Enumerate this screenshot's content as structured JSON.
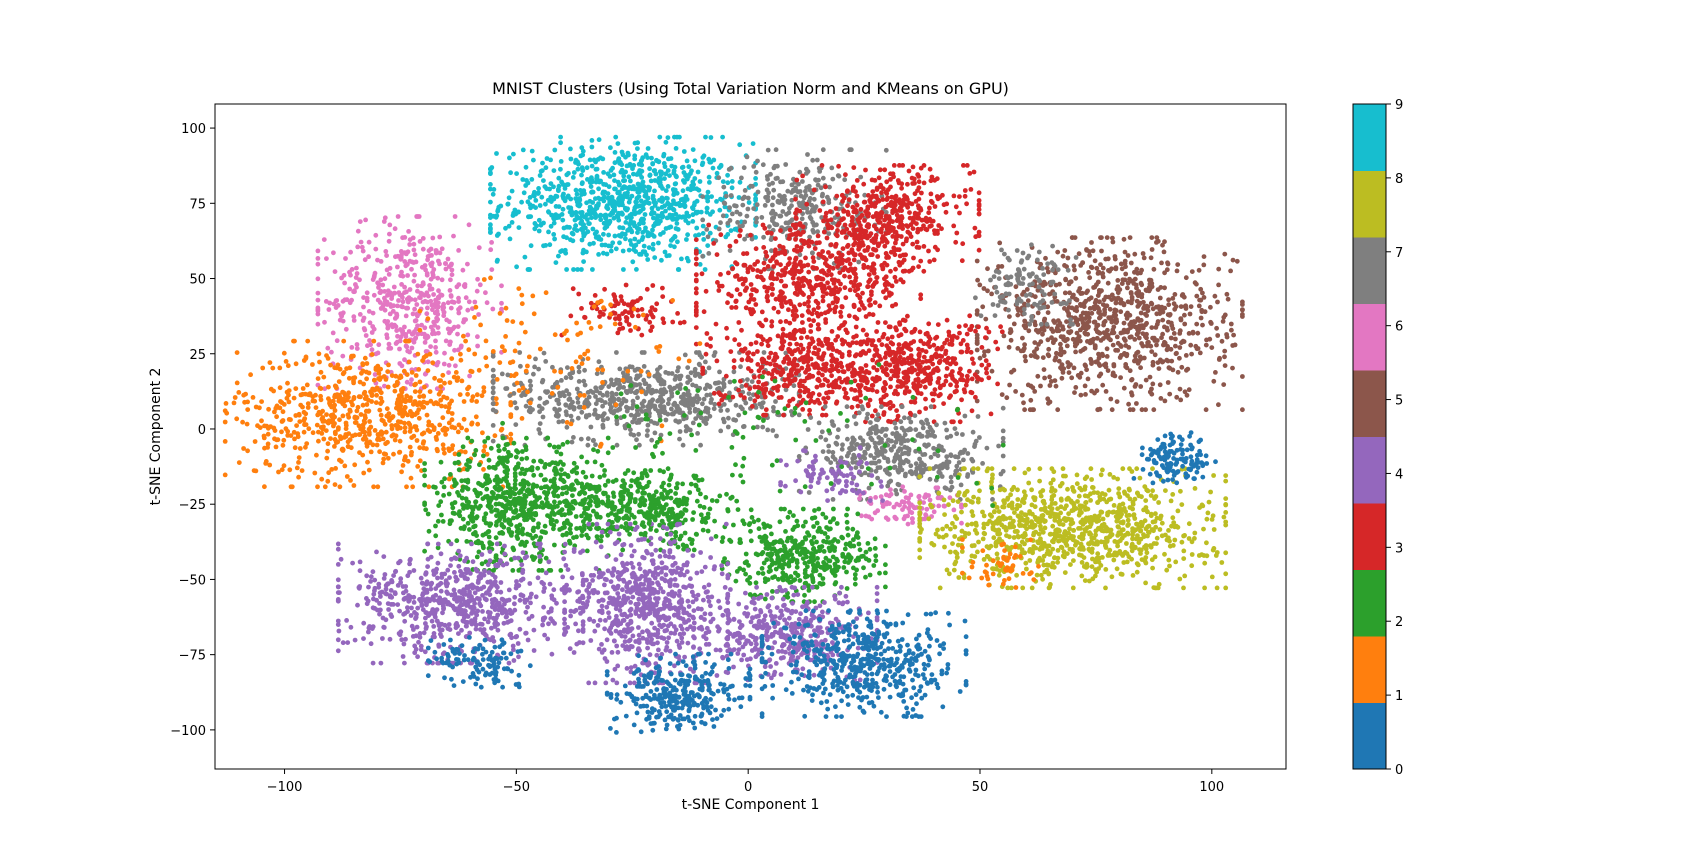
{
  "chart_data": {
    "type": "scatter",
    "title": "MNIST Clusters (Using Total Variation Norm and KMeans on GPU)",
    "xlabel": "t-SNE Component 1",
    "ylabel": "t-SNE Component 2",
    "xlim": [
      -115,
      116
    ],
    "ylim": [
      -113,
      108
    ],
    "xticks": [
      -100,
      -50,
      0,
      50,
      100
    ],
    "yticks": [
      -100,
      -75,
      -50,
      -25,
      0,
      25,
      50,
      75,
      100
    ],
    "grid": false,
    "colorbar": {
      "ticks": [
        0,
        1,
        2,
        3,
        4,
        5,
        6,
        7,
        8,
        9
      ],
      "colors": [
        "#1f77b4",
        "#ff7f0e",
        "#2ca02c",
        "#d62728",
        "#9467bd",
        "#8c564b",
        "#e377c2",
        "#7f7f7f",
        "#bcbd22",
        "#17becf"
      ]
    },
    "clusters": [
      {
        "label": 9,
        "cx": -27,
        "cy": 75,
        "sx": 13,
        "sy": 10,
        "n": 900
      },
      {
        "label": 6,
        "cx": -73,
        "cy": 42,
        "sx": 9,
        "sy": 13,
        "n": 500
      },
      {
        "label": 1,
        "cx": -82,
        "cy": 5,
        "sx": 14,
        "sy": 11,
        "n": 700
      },
      {
        "label": 7,
        "cx": 10,
        "cy": 73,
        "sx": 9,
        "sy": 9,
        "n": 300
      },
      {
        "label": 3,
        "cx": 30,
        "cy": 70,
        "sx": 9,
        "sy": 8,
        "n": 450
      },
      {
        "label": 3,
        "cx": 13,
        "cy": 48,
        "sx": 11,
        "sy": 9,
        "n": 550
      },
      {
        "label": 3,
        "cx": -27,
        "cy": 40,
        "sx": 6,
        "sy": 4,
        "n": 90
      },
      {
        "label": 5,
        "cx": 78,
        "cy": 35,
        "sx": 13,
        "sy": 13,
        "n": 900
      },
      {
        "label": 7,
        "cx": 60,
        "cy": 48,
        "sx": 5,
        "sy": 6,
        "n": 110
      },
      {
        "label": 7,
        "cx": -22,
        "cy": 10,
        "sx": 15,
        "sy": 7,
        "n": 650
      },
      {
        "label": 3,
        "cx": 10,
        "cy": 20,
        "sx": 9,
        "sy": 7,
        "n": 350
      },
      {
        "label": 3,
        "cx": 35,
        "cy": 20,
        "sx": 9,
        "sy": 8,
        "n": 450
      },
      {
        "label": 7,
        "cx": 33,
        "cy": -8,
        "sx": 10,
        "sy": 7,
        "n": 380
      },
      {
        "label": 6,
        "cx": 35,
        "cy": -25,
        "sx": 5,
        "sy": 3,
        "n": 90
      },
      {
        "label": 4,
        "cx": 18,
        "cy": -15,
        "sx": 5,
        "sy": 4,
        "n": 80
      },
      {
        "label": 8,
        "cx": 70,
        "cy": -33,
        "sx": 15,
        "sy": 9,
        "n": 950
      },
      {
        "label": 0,
        "cx": 92,
        "cy": -10,
        "sx": 4,
        "sy": 4,
        "n": 130
      },
      {
        "label": 2,
        "cx": -50,
        "cy": -25,
        "sx": 9,
        "sy": 10,
        "n": 650
      },
      {
        "label": 2,
        "cx": -22,
        "cy": -27,
        "sx": 9,
        "sy": 6,
        "n": 400
      },
      {
        "label": 2,
        "cx": 12,
        "cy": -42,
        "sx": 8,
        "sy": 7,
        "n": 400
      },
      {
        "label": 4,
        "cx": -62,
        "cy": -58,
        "sx": 12,
        "sy": 9,
        "n": 650
      },
      {
        "label": 4,
        "cx": -22,
        "cy": -58,
        "sx": 8,
        "sy": 12,
        "n": 650
      },
      {
        "label": 4,
        "cx": 8,
        "cy": -68,
        "sx": 9,
        "sy": 7,
        "n": 400
      },
      {
        "label": 0,
        "cx": 25,
        "cy": -78,
        "sx": 10,
        "sy": 8,
        "n": 500
      },
      {
        "label": 0,
        "cx": -15,
        "cy": -88,
        "sx": 7,
        "sy": 6,
        "n": 300
      },
      {
        "label": 0,
        "cx": -58,
        "cy": -77,
        "sx": 5,
        "sy": 4,
        "n": 110
      },
      {
        "label": 1,
        "cx": -40,
        "cy": 25,
        "sx": 14,
        "sy": 14,
        "n": 110
      },
      {
        "label": 1,
        "cx": 55,
        "cy": -45,
        "sx": 4,
        "sy": 4,
        "n": 50
      },
      {
        "label": 2,
        "cx": 0,
        "cy": -5,
        "sx": 25,
        "sy": 12,
        "n": 100
      }
    ]
  }
}
